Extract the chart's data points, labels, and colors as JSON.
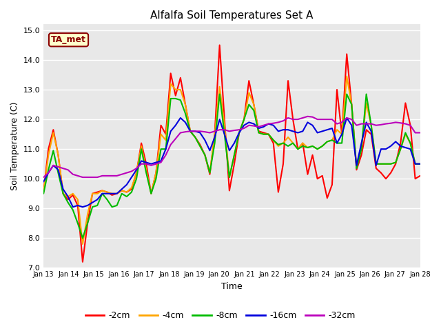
{
  "title": "Alfalfa Soil Temperatures Set A",
  "xlabel": "Time",
  "ylabel": "Soil Temperature (C)",
  "ylim": [
    7.0,
    15.2
  ],
  "yticks": [
    7.0,
    8.0,
    9.0,
    10.0,
    11.0,
    12.0,
    13.0,
    14.0,
    15.0
  ],
  "ytick_labels": [
    "7.0",
    "8.0",
    "9.0",
    "10.0",
    "11.0",
    "12.0",
    "13.0",
    "14.0",
    "15.0"
  ],
  "xtick_labels": [
    "Jan 13",
    "Jan 14",
    "Jan 15",
    "Jan 16",
    "Jan 17",
    "Jan 18",
    "Jan 19",
    "Jan 20",
    "Jan 21",
    "Jan 22",
    "Jan 23",
    "Jan 24",
    "Jan 25",
    "Jan 26",
    "Jan 27",
    "Jan 28"
  ],
  "fig_bg": "#ffffff",
  "plot_bg": "#e8e8e8",
  "grid_color": "#ffffff",
  "annotation_text": "TA_met",
  "annotation_color": "#8b0000",
  "annotation_bg": "#ffffcc",
  "series": [
    {
      "label": "-2cm",
      "color": "#ff0000",
      "lw": 1.5,
      "values": [
        9.55,
        11.0,
        11.65,
        10.8,
        9.5,
        9.3,
        9.45,
        9.1,
        7.2,
        8.5,
        9.5,
        9.55,
        9.6,
        9.55,
        9.45,
        9.5,
        9.6,
        9.55,
        9.65,
        10.2,
        11.2,
        10.5,
        9.5,
        10.2,
        11.8,
        11.5,
        13.55,
        12.8,
        13.4,
        12.5,
        11.6,
        11.4,
        11.15,
        10.8,
        10.15,
        11.5,
        14.5,
        12.0,
        9.6,
        10.5,
        11.55,
        12.0,
        13.3,
        12.5,
        11.6,
        11.55,
        11.5,
        11.2,
        9.55,
        10.5,
        13.3,
        12.0,
        11.0,
        11.2,
        10.15,
        10.8,
        10.0,
        10.1,
        9.35,
        9.8,
        13.0,
        11.5,
        14.2,
        12.5,
        10.3,
        10.8,
        11.65,
        11.5,
        10.35,
        10.2,
        10.0,
        10.2,
        10.5,
        11.2,
        12.55,
        11.8,
        10.0,
        10.1
      ]
    },
    {
      "label": "-4cm",
      "color": "#ffa500",
      "lw": 1.5,
      "values": [
        9.55,
        10.8,
        11.55,
        10.8,
        9.5,
        9.4,
        9.5,
        9.3,
        7.8,
        8.8,
        9.5,
        9.5,
        9.6,
        9.55,
        9.5,
        9.5,
        9.6,
        9.55,
        9.7,
        10.2,
        11.1,
        10.3,
        9.5,
        10.2,
        11.5,
        11.3,
        13.2,
        13.0,
        13.0,
        12.5,
        11.6,
        11.4,
        11.1,
        10.8,
        10.2,
        11.5,
        13.1,
        11.8,
        10.05,
        10.8,
        11.55,
        12.0,
        12.9,
        12.5,
        11.55,
        11.5,
        11.5,
        11.3,
        11.1,
        11.2,
        11.4,
        11.2,
        11.0,
        11.2,
        11.05,
        11.1,
        11.0,
        11.1,
        11.25,
        11.3,
        11.65,
        11.5,
        13.45,
        12.5,
        10.4,
        11.0,
        12.55,
        11.8,
        10.5,
        10.5,
        10.5,
        10.5,
        10.55,
        11.0,
        11.5,
        11.2,
        10.5,
        10.5
      ]
    },
    {
      "label": "-8cm",
      "color": "#00bb00",
      "lw": 1.5,
      "values": [
        9.5,
        10.3,
        10.95,
        10.2,
        9.5,
        9.2,
        8.95,
        8.5,
        8.0,
        8.5,
        9.05,
        9.1,
        9.5,
        9.3,
        9.05,
        9.1,
        9.5,
        9.4,
        9.55,
        10.0,
        11.0,
        10.2,
        9.5,
        10.0,
        11.0,
        11.0,
        12.7,
        12.7,
        12.65,
        12.2,
        11.6,
        11.4,
        11.1,
        10.8,
        10.2,
        11.2,
        12.85,
        11.5,
        10.05,
        10.8,
        11.55,
        12.0,
        12.5,
        12.3,
        11.55,
        11.5,
        11.5,
        11.3,
        11.15,
        11.2,
        11.1,
        11.2,
        11.0,
        11.1,
        11.05,
        11.1,
        11.0,
        11.1,
        11.25,
        11.3,
        11.2,
        11.2,
        12.85,
        12.5,
        10.35,
        11.0,
        12.85,
        11.8,
        10.5,
        10.5,
        10.5,
        10.5,
        10.55,
        11.0,
        11.55,
        11.2,
        10.5,
        10.5
      ]
    },
    {
      "label": "-16cm",
      "color": "#0000dd",
      "lw": 1.5,
      "values": [
        9.9,
        10.2,
        10.45,
        10.3,
        9.65,
        9.4,
        9.05,
        9.1,
        9.05,
        9.1,
        9.2,
        9.3,
        9.5,
        9.5,
        9.5,
        9.5,
        9.65,
        9.8,
        10.05,
        10.3,
        10.6,
        10.55,
        10.5,
        10.55,
        10.6,
        11.0,
        11.6,
        11.8,
        12.05,
        11.9,
        11.6,
        11.6,
        11.55,
        11.3,
        10.95,
        11.4,
        12.0,
        11.5,
        10.95,
        11.2,
        11.55,
        11.8,
        11.9,
        11.85,
        11.7,
        11.75,
        11.85,
        11.8,
        11.6,
        11.65,
        11.65,
        11.6,
        11.55,
        11.6,
        11.9,
        11.8,
        11.55,
        11.6,
        11.65,
        11.7,
        11.2,
        11.5,
        12.05,
        11.8,
        10.45,
        11.2,
        11.9,
        11.6,
        10.45,
        11.0,
        11.0,
        11.1,
        11.25,
        11.1,
        11.05,
        11.0,
        10.5,
        10.5
      ]
    },
    {
      "label": "-32cm",
      "color": "#bb00bb",
      "lw": 1.5,
      "values": [
        10.05,
        10.2,
        10.45,
        10.4,
        10.35,
        10.3,
        10.15,
        10.1,
        10.05,
        10.05,
        10.05,
        10.05,
        10.1,
        10.1,
        10.1,
        10.1,
        10.15,
        10.2,
        10.25,
        10.35,
        10.5,
        10.5,
        10.45,
        10.5,
        10.55,
        10.8,
        11.15,
        11.35,
        11.55,
        11.58,
        11.6,
        11.6,
        11.6,
        11.58,
        11.55,
        11.6,
        11.65,
        11.65,
        11.6,
        11.63,
        11.65,
        11.7,
        11.8,
        11.78,
        11.75,
        11.8,
        11.85,
        11.87,
        11.9,
        11.95,
        12.05,
        12.0,
        12.0,
        12.05,
        12.1,
        12.08,
        12.0,
        12.0,
        12.0,
        12.0,
        11.85,
        11.9,
        12.05,
        12.0,
        11.8,
        11.85,
        11.85,
        11.85,
        11.8,
        11.82,
        11.85,
        11.87,
        11.9,
        11.88,
        11.85,
        11.8,
        11.55,
        11.55
      ]
    }
  ],
  "legend_labels": [
    "-2cm",
    "-4cm",
    "-8cm",
    "-16cm",
    "-32cm"
  ],
  "legend_colors": [
    "#ff0000",
    "#ffa500",
    "#00bb00",
    "#0000dd",
    "#bb00bb"
  ]
}
